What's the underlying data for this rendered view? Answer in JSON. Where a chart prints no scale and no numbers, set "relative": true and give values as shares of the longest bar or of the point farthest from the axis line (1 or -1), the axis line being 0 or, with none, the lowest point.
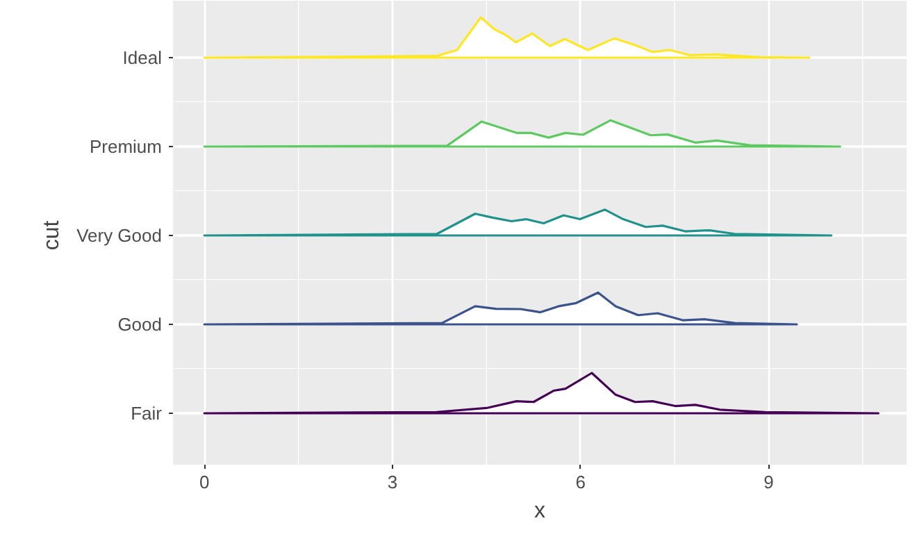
{
  "chart_data": [
    {
      "type": "area",
      "relative": true,
      "annotations": [
        "Ideal"
      ],
      "xlim": [
        -0.5,
        11.2
      ],
      "xticks": [
        0,
        3,
        6,
        9
      ],
      "grid": true,
      "tick_labels": false,
      "series": [
        {
          "color": "#fde725",
          "x": [
            0,
            3.7,
            4.03,
            4.41,
            4.62,
            4.81,
            4.97,
            5.23,
            5.51,
            5.75,
            6.12,
            6.54,
            6.87,
            7.15,
            7.42,
            7.75,
            8.14,
            8.85,
            9.65
          ],
          "values": [
            0,
            0.04,
            0.19,
            1.0,
            0.71,
            0.56,
            0.38,
            0.6,
            0.29,
            0.46,
            0.19,
            0.48,
            0.31,
            0.14,
            0.19,
            0.06,
            0.08,
            0.01,
            0
          ]
        }
      ]
    },
    {
      "type": "area",
      "relative": true,
      "annotations": [
        "Premium"
      ],
      "xlim": [
        -0.5,
        11.2
      ],
      "xticks": [
        0,
        3,
        6,
        9
      ],
      "grid": true,
      "tick_labels": false,
      "series": [
        {
          "color": "#5ec962",
          "x": [
            0,
            3.87,
            4.42,
            4.98,
            5.21,
            5.49,
            5.76,
            6.04,
            6.48,
            7.12,
            7.39,
            7.83,
            8.18,
            8.7,
            10.14
          ],
          "values": [
            0,
            0.03,
            0.95,
            0.52,
            0.52,
            0.34,
            0.52,
            0.45,
            1.0,
            0.43,
            0.46,
            0.15,
            0.23,
            0.05,
            0
          ]
        }
      ]
    },
    {
      "type": "area",
      "relative": true,
      "ylabel": "cut",
      "annotations": [
        "Very Good"
      ],
      "xlim": [
        -0.5,
        11.2
      ],
      "xticks": [
        0,
        3,
        6,
        9
      ],
      "grid": true,
      "tick_labels": false,
      "series": [
        {
          "color": "#21918c",
          "x": [
            0,
            3.71,
            4.32,
            4.6,
            4.9,
            5.13,
            5.41,
            5.73,
            5.99,
            6.39,
            6.68,
            7.04,
            7.31,
            7.67,
            8.06,
            8.46,
            10.0
          ],
          "values": [
            0,
            0.06,
            0.84,
            0.69,
            0.55,
            0.63,
            0.47,
            0.78,
            0.63,
            1.0,
            0.63,
            0.33,
            0.38,
            0.16,
            0.2,
            0.06,
            0
          ]
        }
      ]
    },
    {
      "type": "area",
      "relative": true,
      "annotations": [
        "Good"
      ],
      "xlim": [
        -0.5,
        11.2
      ],
      "xticks": [
        0,
        3,
        6,
        9
      ],
      "grid": true,
      "tick_labels": false,
      "series": [
        {
          "color": "#3b528b",
          "x": [
            0,
            3.79,
            4.32,
            4.65,
            5.05,
            5.36,
            5.65,
            5.93,
            6.28,
            6.56,
            6.92,
            7.23,
            7.63,
            7.98,
            8.46,
            9.45
          ],
          "values": [
            0,
            0.04,
            0.57,
            0.49,
            0.48,
            0.38,
            0.57,
            0.67,
            1.0,
            0.57,
            0.29,
            0.35,
            0.13,
            0.16,
            0.04,
            0
          ]
        }
      ]
    },
    {
      "type": "area",
      "relative": true,
      "xlabel": "x",
      "annotations": [
        "Fair"
      ],
      "xlim": [
        -0.5,
        11.2
      ],
      "xticks": [
        0,
        3,
        6,
        9
      ],
      "grid": true,
      "tick_labels": "x",
      "series": [
        {
          "color": "#440154",
          "x": [
            0,
            3.7,
            4.5,
            4.98,
            5.25,
            5.57,
            5.76,
            6.18,
            6.56,
            6.87,
            7.15,
            7.51,
            7.83,
            8.22,
            8.94,
            10.75
          ],
          "values": [
            0,
            0.03,
            0.13,
            0.3,
            0.28,
            0.56,
            0.61,
            1.0,
            0.46,
            0.28,
            0.3,
            0.18,
            0.21,
            0.09,
            0.03,
            0
          ]
        }
      ]
    }
  ]
}
